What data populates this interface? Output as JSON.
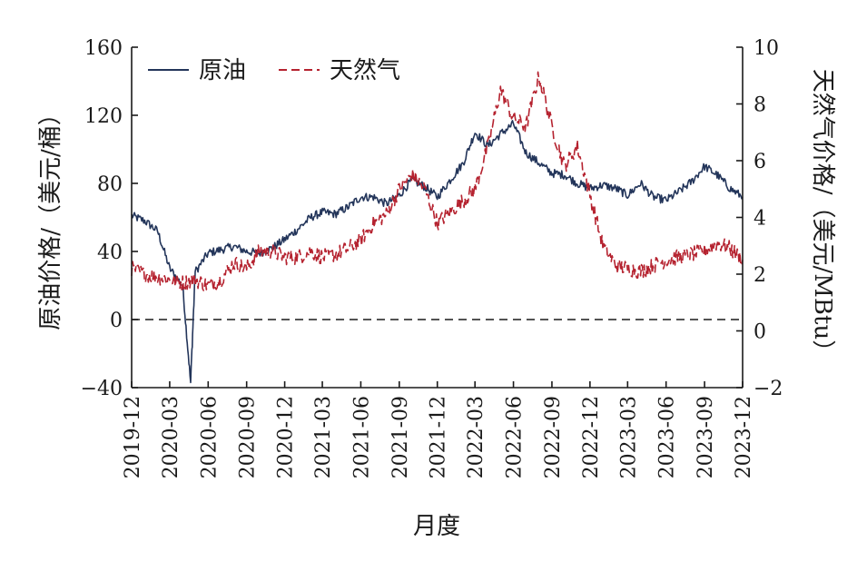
{
  "chart_data": {
    "type": "line",
    "xlabel": "月度",
    "ylabel_left": "原油价格/（美元/桶）",
    "ylabel_right": "天然气价格/（美元/MBtu）",
    "x_tick_labels": [
      "2019-12",
      "2020-03",
      "2020-06",
      "2020-09",
      "2020-12",
      "2021-03",
      "2021-06",
      "2021-09",
      "2021-12",
      "2022-03",
      "2022-06",
      "2022-09",
      "2022-12",
      "2023-03",
      "2023-06",
      "2023-09",
      "2023-12"
    ],
    "x_range": [
      "2019-12",
      "2023-12"
    ],
    "ylim_left": [
      -40,
      160
    ],
    "yticks_left": [
      "160",
      "120",
      "80",
      "40",
      "0",
      "−40"
    ],
    "ylim_right": [
      -2,
      10
    ],
    "yticks_right": [
      "10",
      "8",
      "6",
      "4",
      "2",
      "0",
      "−2"
    ],
    "zero_reference_line": 0,
    "legend_position": "top-left",
    "grid": false,
    "series": [
      {
        "name": "原油",
        "axis": "left",
        "color": "#23355a",
        "style": "solid",
        "x": [
          "2019-12",
          "2020-01",
          "2020-02",
          "2020-03",
          "2020-04",
          "2020-04-20",
          "2020-05",
          "2020-06",
          "2020-07",
          "2020-08",
          "2020-09",
          "2020-10",
          "2020-11",
          "2020-12",
          "2021-01",
          "2021-02",
          "2021-03",
          "2021-04",
          "2021-05",
          "2021-06",
          "2021-07",
          "2021-08",
          "2021-09",
          "2021-10",
          "2021-11",
          "2021-12",
          "2022-01",
          "2022-02",
          "2022-03",
          "2022-04",
          "2022-05",
          "2022-06",
          "2022-07",
          "2022-08",
          "2022-09",
          "2022-10",
          "2022-11",
          "2022-12",
          "2023-01",
          "2023-02",
          "2023-03",
          "2023-04",
          "2023-05",
          "2023-06",
          "2023-07",
          "2023-08",
          "2023-09",
          "2023-10",
          "2023-11",
          "2023-12"
        ],
        "values": [
          61,
          58,
          52,
          30,
          20,
          -37,
          28,
          39,
          41,
          43,
          40,
          39,
          42,
          47,
          53,
          60,
          63,
          62,
          66,
          72,
          72,
          68,
          73,
          82,
          78,
          72,
          82,
          92,
          110,
          102,
          109,
          115,
          98,
          92,
          86,
          85,
          80,
          77,
          79,
          77,
          73,
          80,
          72,
          70,
          75,
          81,
          90,
          85,
          77,
          72
        ]
      },
      {
        "name": "天然气",
        "axis": "right",
        "color": "#b5222f",
        "style": "dashed",
        "x": [
          "2019-12",
          "2020-01",
          "2020-02",
          "2020-03",
          "2020-04",
          "2020-05",
          "2020-06",
          "2020-07",
          "2020-08",
          "2020-09",
          "2020-10",
          "2020-11",
          "2020-12",
          "2021-01",
          "2021-02",
          "2021-03",
          "2021-04",
          "2021-05",
          "2021-06",
          "2021-07",
          "2021-08",
          "2021-09",
          "2021-10",
          "2021-11",
          "2021-12",
          "2022-01",
          "2022-02",
          "2022-03",
          "2022-04",
          "2022-05",
          "2022-06",
          "2022-07",
          "2022-08",
          "2022-09",
          "2022-10",
          "2022-11",
          "2022-12",
          "2023-01",
          "2023-02",
          "2023-03",
          "2023-04",
          "2023-05",
          "2023-06",
          "2023-07",
          "2023-08",
          "2023-09",
          "2023-10",
          "2023-11",
          "2023-12"
        ],
        "values": [
          2.2,
          2.0,
          1.9,
          1.8,
          1.7,
          1.8,
          1.6,
          1.8,
          2.4,
          2.2,
          2.8,
          2.8,
          2.6,
          2.6,
          2.8,
          2.6,
          2.7,
          2.9,
          3.2,
          3.8,
          4.1,
          5.0,
          5.5,
          5.0,
          3.8,
          4.2,
          4.6,
          5.0,
          6.5,
          8.5,
          7.5,
          7.2,
          9.0,
          7.2,
          5.8,
          6.5,
          4.8,
          3.0,
          2.3,
          2.2,
          2.1,
          2.3,
          2.5,
          2.6,
          2.7,
          2.8,
          3.1,
          2.9,
          2.5
        ]
      }
    ]
  }
}
